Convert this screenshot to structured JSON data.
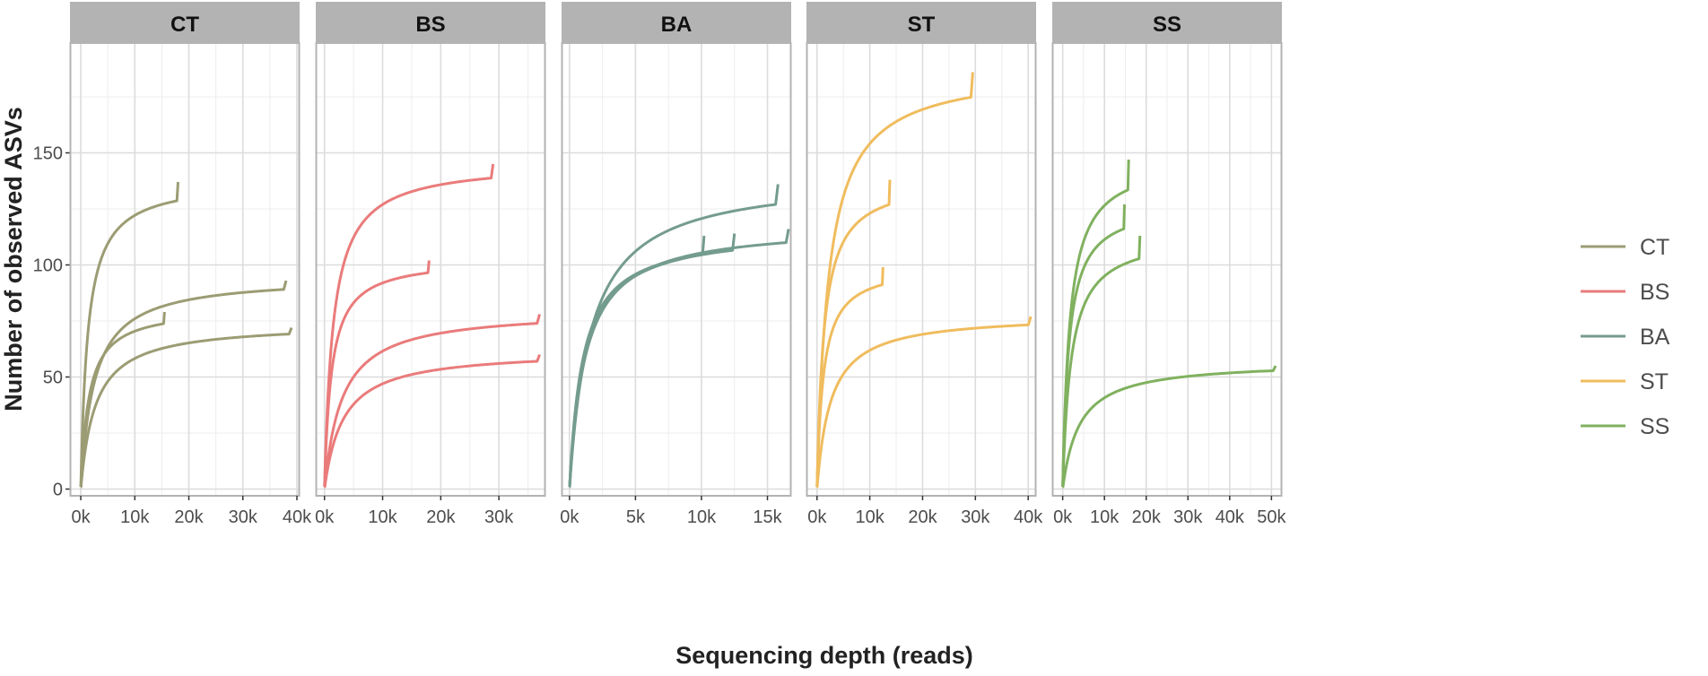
{
  "chart_data": {
    "type": "line",
    "title": "",
    "xlabel": "Sequencing depth (reads)",
    "ylabel": "Number of observed ASVs",
    "ylim": [
      -3,
      199
    ],
    "yticks": [
      0,
      50,
      100,
      150
    ],
    "grid": true,
    "legend": {
      "placement": "right",
      "entries": [
        {
          "label": "CT",
          "color": "#9C9C74"
        },
        {
          "label": "BS",
          "color": "#EA7B7B"
        },
        {
          "label": "BA",
          "color": "#749C8E"
        },
        {
          "label": "ST",
          "color": "#F0BC5E"
        },
        {
          "label": "SS",
          "color": "#80B15F"
        }
      ]
    },
    "panels": [
      {
        "name": "CT",
        "color": "#9C9C74",
        "xlim": [
          -2000,
          40500
        ],
        "xticks": [
          0,
          10000,
          20000,
          30000,
          40000
        ],
        "xticklabels": [
          "0k",
          "10k",
          "20k",
          "30k",
          "40k"
        ],
        "series": [
          {
            "asymptote": 138,
            "k": 1300,
            "xmax": 18000,
            "end": 137
          },
          {
            "asymptote": 95,
            "k": 2500,
            "xmax": 38000,
            "end": 93
          },
          {
            "asymptote": 81,
            "k": 1500,
            "xmax": 15500,
            "end": 79
          },
          {
            "asymptote": 74,
            "k": 2700,
            "xmax": 39000,
            "end": 72
          }
        ]
      },
      {
        "name": "BS",
        "color": "#EA7B7B",
        "xlim": [
          -1500,
          38000
        ],
        "xticks": [
          0,
          10000,
          20000,
          30000
        ],
        "xticklabels": [
          "0k",
          "10k",
          "20k",
          "30k"
        ],
        "series": [
          {
            "asymptote": 146,
            "k": 1500,
            "xmax": 29000,
            "end": 145
          },
          {
            "asymptote": 103,
            "k": 1200,
            "xmax": 18000,
            "end": 102
          },
          {
            "asymptote": 80,
            "k": 3000,
            "xmax": 37000,
            "end": 78
          },
          {
            "asymptote": 62,
            "k": 3200,
            "xmax": 37000,
            "end": 60
          }
        ]
      },
      {
        "name": "BA",
        "color": "#749C8E",
        "xlim": [
          -600,
          16800
        ],
        "xticks": [
          0,
          5000,
          10000,
          15000
        ],
        "xticklabels": [
          "0k",
          "5k",
          "10k",
          "15k"
        ],
        "series": [
          {
            "asymptote": 140,
            "k": 1600,
            "xmax": 15800,
            "end": 136
          },
          {
            "asymptote": 118,
            "k": 1200,
            "xmax": 16600,
            "end": 116
          },
          {
            "asymptote": 116,
            "k": 1100,
            "xmax": 12500,
            "end": 114
          },
          {
            "asymptote": 115,
            "k": 1000,
            "xmax": 10200,
            "end": 113
          }
        ]
      },
      {
        "name": "ST",
        "color": "#F0BC5E",
        "xlim": [
          -2000,
          41500
        ],
        "xticks": [
          0,
          10000,
          20000,
          30000,
          40000
        ],
        "xticklabels": [
          "0k",
          "10k",
          "20k",
          "30k",
          "40k"
        ],
        "series": [
          {
            "asymptote": 188,
            "k": 2200,
            "xmax": 29500,
            "end": 186
          },
          {
            "asymptote": 139,
            "k": 1300,
            "xmax": 13800,
            "end": 138
          },
          {
            "asymptote": 100,
            "k": 1200,
            "xmax": 12500,
            "end": 99
          },
          {
            "asymptote": 78,
            "k": 2600,
            "xmax": 40500,
            "end": 77
          }
        ]
      },
      {
        "name": "SS",
        "color": "#80B15F",
        "xlim": [
          -2500,
          52500
        ],
        "xticks": [
          0,
          10000,
          20000,
          30000,
          40000,
          50000
        ],
        "xticklabels": [
          "0k",
          "10k",
          "20k",
          "30k",
          "40k",
          "50k"
        ],
        "series": [
          {
            "asymptote": 148,
            "k": 1700,
            "xmax": 15800,
            "end": 147
          },
          {
            "asymptote": 128,
            "k": 1500,
            "xmax": 14800,
            "end": 127
          },
          {
            "asymptote": 114,
            "k": 2000,
            "xmax": 18500,
            "end": 113
          },
          {
            "asymptote": 57,
            "k": 4000,
            "xmax": 51000,
            "end": 55
          }
        ]
      }
    ]
  }
}
